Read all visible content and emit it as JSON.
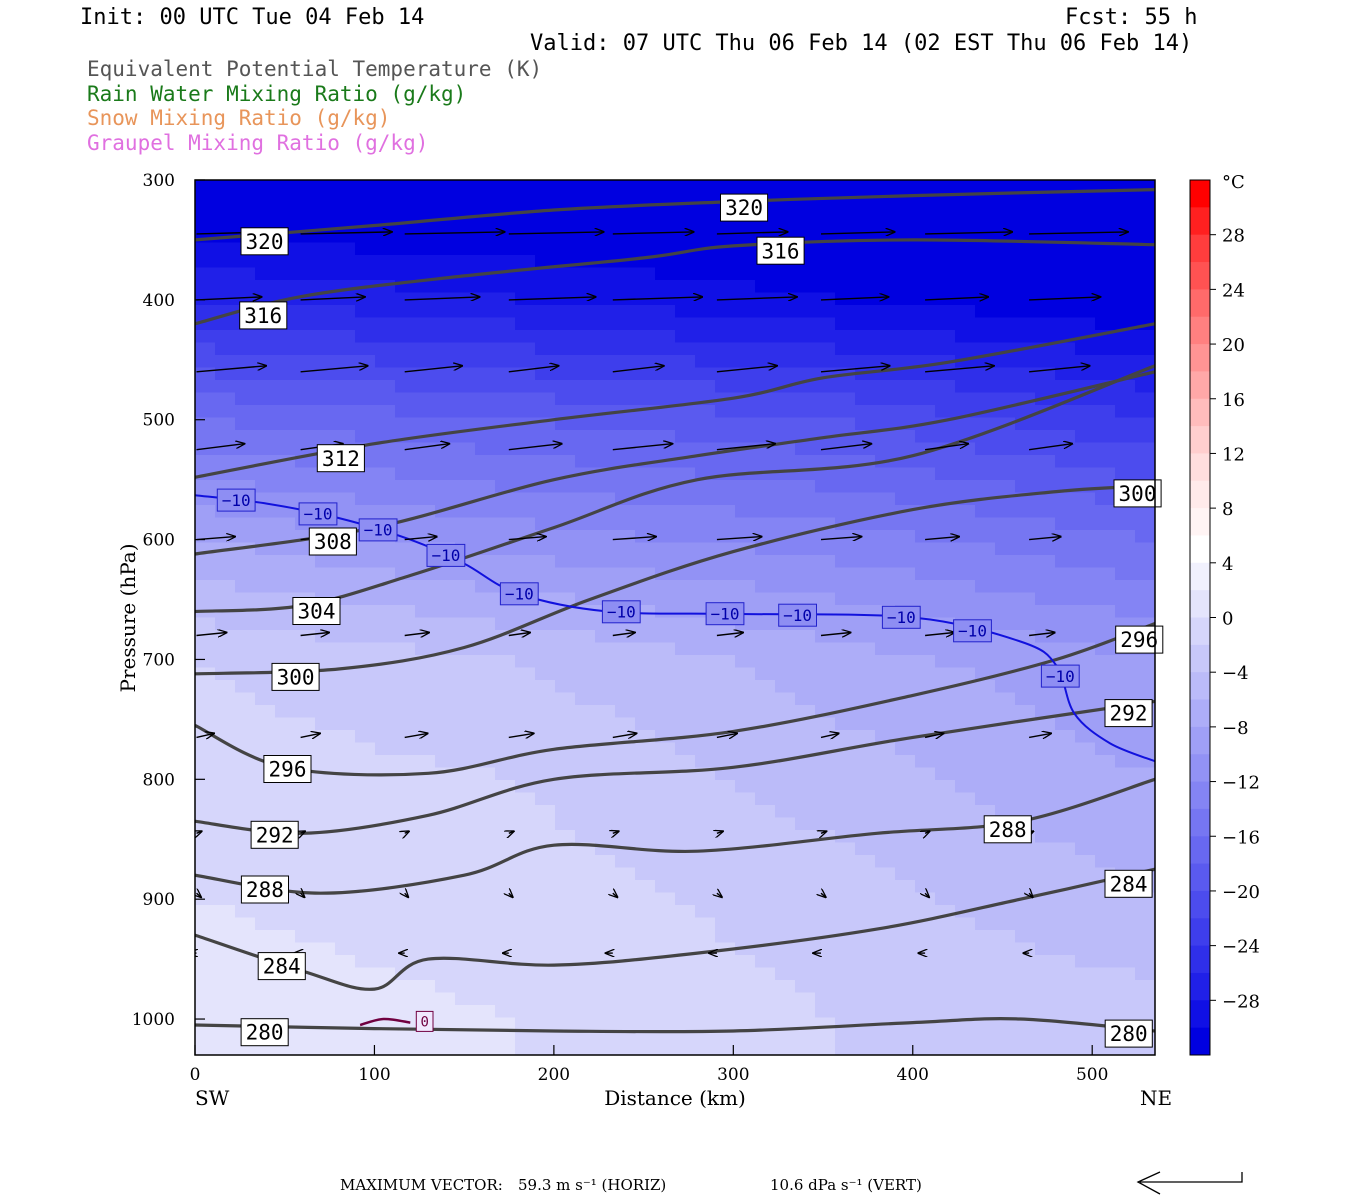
{
  "header": {
    "init": "Init: 00 UTC Tue 04 Feb 14",
    "fcst": "Fcst:   55 h",
    "valid": "Valid: 07 UTC Thu 06 Feb 14 (02 EST Thu 06 Feb 14)"
  },
  "fields": [
    {
      "label": "Equivalent Potential Temperature (K)",
      "color": "#555555"
    },
    {
      "label": "Rain Water Mixing Ratio (g/kg)",
      "color": "#1a7a1a"
    },
    {
      "label": "Snow Mixing Ratio (g/kg)",
      "color": "#e8955a"
    },
    {
      "label": "Graupel Mixing Ratio (g/kg)",
      "color": "#e070e0"
    }
  ],
  "footer": {
    "max_label": "MAXIMUM VECTOR:",
    "horiz": "59.3 m s⁻¹ (HORIZ)",
    "vert": "10.6 dPa s⁻¹ (VERT)"
  },
  "chart_data": {
    "type": "heatmap",
    "xlabel": "Distance (km)",
    "ylabel": "Pressure (hPa)",
    "xlim": [
      0,
      535
    ],
    "ylim": [
      1030,
      300
    ],
    "x_ticks": [
      0,
      100,
      200,
      300,
      400,
      500
    ],
    "y_ticks": [
      300,
      400,
      500,
      600,
      700,
      800,
      900,
      1000
    ],
    "x_end_labels": {
      "left": "SW",
      "right": "NE"
    },
    "colorbar": {
      "unit": "°C",
      "ticks": [
        28,
        24,
        20,
        16,
        12,
        8,
        4,
        0,
        -4,
        -8,
        -12,
        -16,
        -20,
        -24,
        -28
      ],
      "levels": [
        32,
        30,
        28,
        26,
        24,
        22,
        20,
        18,
        16,
        14,
        12,
        10,
        8,
        6,
        4,
        2,
        0,
        -2,
        -4,
        -6,
        -8,
        -10,
        -12,
        -14,
        -16,
        -18,
        -20,
        -22,
        -24,
        -26,
        -28,
        -30,
        -32
      ],
      "colors": [
        "#ff0000",
        "#ff2020",
        "#ff3d3d",
        "#ff5252",
        "#ff6a6a",
        "#ff8080",
        "#ff9494",
        "#ffa8a8",
        "#ffbcbc",
        "#ffcece",
        "#ffdede",
        "#ffeaea",
        "#fff4f4",
        "#ffffff",
        "#f1f1fd",
        "#e4e4fc",
        "#d6d6fb",
        "#c8c8fa",
        "#bbbbf9",
        "#adadf8",
        "#9f9ff6",
        "#9292f5",
        "#8484f4",
        "#7676f2",
        "#6868f1",
        "#5a5aef",
        "#4c4cee",
        "#3e3eec",
        "#2f2fea",
        "#2020e8",
        "#1010e5",
        "#0000e0"
      ]
    },
    "temperature_field": [
      {
        "p": 300,
        "t": [
          -34,
          -34,
          -34,
          -34
        ]
      },
      {
        "p": 400,
        "t": [
          -26,
          -28,
          -30,
          -32
        ]
      },
      {
        "p": 500,
        "t": [
          -16,
          -18,
          -20,
          -24
        ]
      },
      {
        "p": 600,
        "t": [
          -8,
          -11,
          -13,
          -16
        ]
      },
      {
        "p": 700,
        "t": [
          -2,
          -4,
          -7,
          -10
        ]
      },
      {
        "p": 800,
        "t": [
          -1,
          -2,
          -5,
          -8
        ]
      },
      {
        "p": 900,
        "t": [
          0,
          -1,
          -3,
          -6
        ]
      },
      {
        "p": 1000,
        "t": [
          1,
          0,
          -2,
          -3
        ]
      }
    ],
    "theta_e_contours": [
      {
        "label": "320",
        "points": [
          [
            0,
            350
          ],
          [
            100,
            338
          ],
          [
            200,
            325
          ],
          [
            300,
            318
          ],
          [
            400,
            313
          ],
          [
            535,
            308
          ]
        ]
      },
      {
        "label": "316",
        "points": [
          [
            0,
            420
          ],
          [
            60,
            397
          ],
          [
            150,
            380
          ],
          [
            250,
            365
          ],
          [
            300,
            355
          ],
          [
            400,
            350
          ],
          [
            535,
            354
          ]
        ]
      },
      {
        "label": "312",
        "points": [
          [
            0,
            548
          ],
          [
            100,
            520
          ],
          [
            200,
            500
          ],
          [
            300,
            482
          ],
          [
            350,
            465
          ],
          [
            420,
            452
          ],
          [
            535,
            420
          ]
        ]
      },
      {
        "label": "308",
        "points": [
          [
            0,
            612
          ],
          [
            100,
            590
          ],
          [
            200,
            550
          ],
          [
            280,
            530
          ],
          [
            350,
            515
          ],
          [
            420,
            500
          ],
          [
            535,
            460
          ]
        ]
      },
      {
        "label": "304",
        "points": [
          [
            0,
            660
          ],
          [
            60,
            655
          ],
          [
            120,
            630
          ],
          [
            200,
            590
          ],
          [
            280,
            550
          ],
          [
            400,
            530
          ],
          [
            535,
            455
          ]
        ]
      },
      {
        "label": "300",
        "points": [
          [
            0,
            712
          ],
          [
            80,
            708
          ],
          [
            150,
            690
          ],
          [
            220,
            650
          ],
          [
            300,
            610
          ],
          [
            400,
            575
          ],
          [
            480,
            560
          ],
          [
            535,
            555
          ]
        ]
      },
      {
        "label": "296",
        "points": [
          [
            0,
            755
          ],
          [
            50,
            790
          ],
          [
            130,
            795
          ],
          [
            200,
            775
          ],
          [
            300,
            760
          ],
          [
            400,
            730
          ],
          [
            480,
            700
          ],
          [
            535,
            670
          ]
        ]
      },
      {
        "label": "292",
        "points": [
          [
            0,
            835
          ],
          [
            60,
            845
          ],
          [
            130,
            830
          ],
          [
            200,
            800
          ],
          [
            300,
            790
          ],
          [
            400,
            765
          ],
          [
            535,
            735
          ]
        ]
      },
      {
        "label": "288",
        "points": [
          [
            0,
            880
          ],
          [
            70,
            895
          ],
          [
            150,
            880
          ],
          [
            200,
            855
          ],
          [
            280,
            860
          ],
          [
            380,
            845
          ],
          [
            460,
            835
          ],
          [
            535,
            800
          ]
        ]
      },
      {
        "label": "284",
        "points": [
          [
            0,
            930
          ],
          [
            60,
            960
          ],
          [
            100,
            975
          ],
          [
            130,
            950
          ],
          [
            200,
            955
          ],
          [
            280,
            945
          ],
          [
            380,
            925
          ],
          [
            460,
            900
          ],
          [
            535,
            875
          ]
        ]
      },
      {
        "label": "280",
        "points": [
          [
            0,
            1005
          ],
          [
            100,
            1008
          ],
          [
            200,
            1010
          ],
          [
            300,
            1010
          ],
          [
            400,
            1003
          ],
          [
            460,
            1000
          ],
          [
            535,
            1010
          ]
        ]
      }
    ],
    "isotherm_minus10": {
      "points": [
        [
          0,
          563
        ],
        [
          40,
          570
        ],
        [
          80,
          582
        ],
        [
          120,
          600
        ],
        [
          150,
          620
        ],
        [
          180,
          645
        ],
        [
          230,
          660
        ],
        [
          300,
          662
        ],
        [
          400,
          665
        ],
        [
          460,
          685
        ],
        [
          480,
          705
        ],
        [
          490,
          745
        ],
        [
          510,
          770
        ],
        [
          535,
          785
        ]
      ],
      "label": "−10"
    },
    "graupel_contour": {
      "points": [
        [
          92,
          1005
        ],
        [
          105,
          1000
        ],
        [
          120,
          1003
        ]
      ],
      "label": "0"
    },
    "wind_vectors_note": "horizontal-vertical circulation vectors, max 59.3 m/s horiz, 10.6 dPa/s vert"
  }
}
